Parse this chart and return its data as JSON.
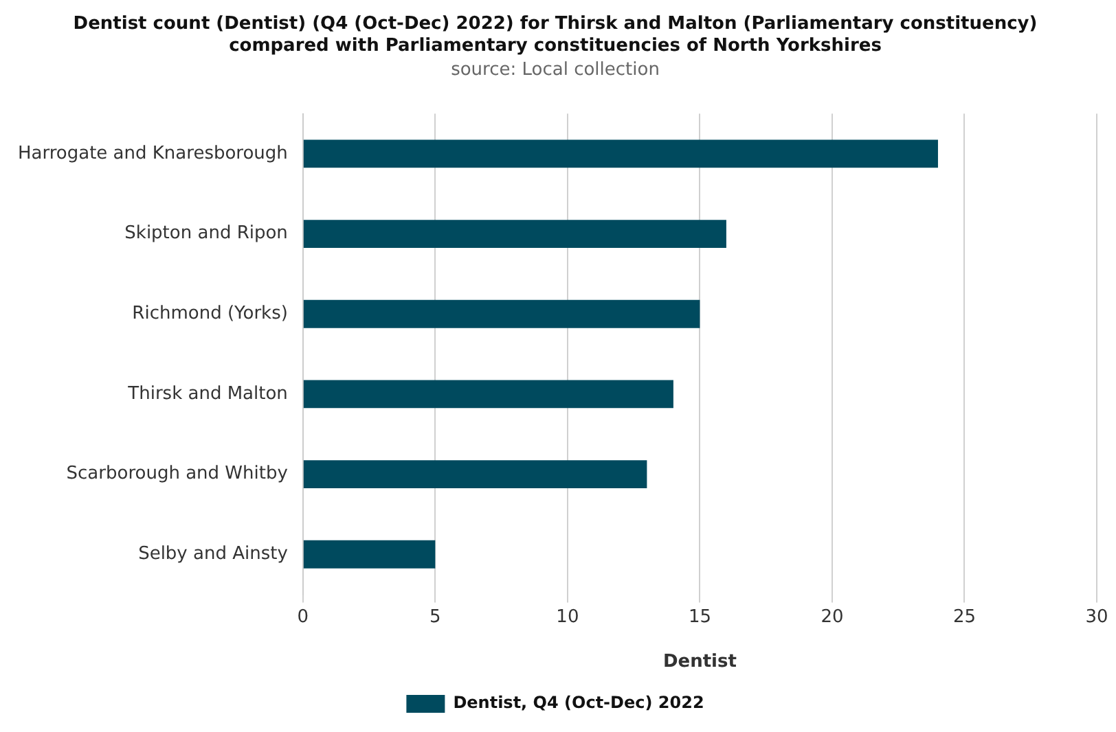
{
  "chart_data": {
    "type": "bar",
    "orientation": "horizontal",
    "title": "Dentist count (Dentist) (Q4 (Oct-Dec) 2022) for Thirsk and Malton (Parliamentary constituency) compared with Parliamentary constituencies of North Yorkshires",
    "subtitle": "source: Local collection",
    "xlabel": "Dentist",
    "categories": [
      "Harrogate and Knaresborough",
      "Skipton and Ripon",
      "Richmond (Yorks)",
      "Thirsk and Malton",
      "Scarborough and Whitby",
      "Selby and Ainsty"
    ],
    "series": [
      {
        "name": "Dentist, Q4 (Oct-Dec) 2022",
        "color": "#004a5e",
        "values": [
          24,
          16,
          15,
          14,
          13,
          5
        ]
      }
    ],
    "xlim": [
      0,
      30
    ],
    "xticks": [
      0,
      5,
      10,
      15,
      20,
      25,
      30
    ],
    "grid": "x",
    "legend": "bottom"
  }
}
